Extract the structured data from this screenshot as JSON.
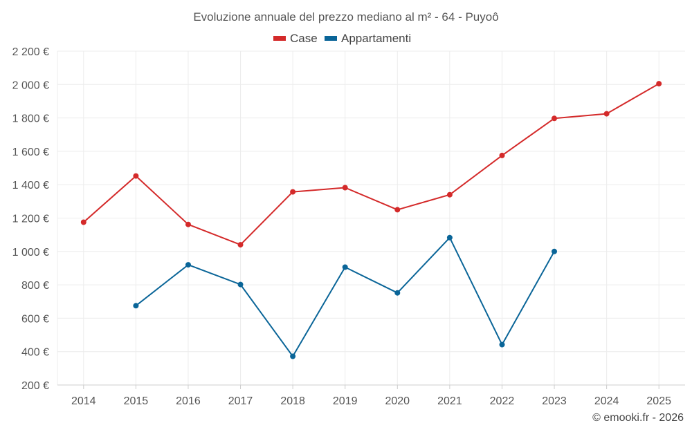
{
  "chart_data": {
    "type": "line",
    "title": "Evoluzione annuale del prezzo mediano al m² - 64 - Puyoô",
    "xlabel": "",
    "ylabel": "",
    "categories": [
      "2014",
      "2015",
      "2016",
      "2017",
      "2018",
      "2019",
      "2020",
      "2021",
      "2022",
      "2023",
      "2024",
      "2025"
    ],
    "y_ticks": [
      200,
      400,
      600,
      800,
      1000,
      1200,
      1400,
      1600,
      1800,
      2000,
      2200
    ],
    "y_tick_labels": [
      "200 €",
      "400 €",
      "600 €",
      "800 €",
      "1 000 €",
      "1 200 €",
      "1 400 €",
      "1 600 €",
      "1 800 €",
      "2 000 €",
      "2 200 €"
    ],
    "ylim": [
      200,
      2200
    ],
    "grid": true,
    "legend_position": "top-center",
    "series": [
      {
        "name": "Case",
        "color": "#d42a2a",
        "values": [
          1175,
          1452,
          1162,
          1040,
          1357,
          1382,
          1250,
          1340,
          1575,
          1797,
          1825,
          2005
        ]
      },
      {
        "name": "Appartamenti",
        "color": "#0a6598",
        "values": [
          null,
          675,
          920,
          802,
          372,
          906,
          752,
          1083,
          442,
          1000,
          null,
          null
        ]
      }
    ]
  },
  "credit": "© emooki.fr - 2026"
}
